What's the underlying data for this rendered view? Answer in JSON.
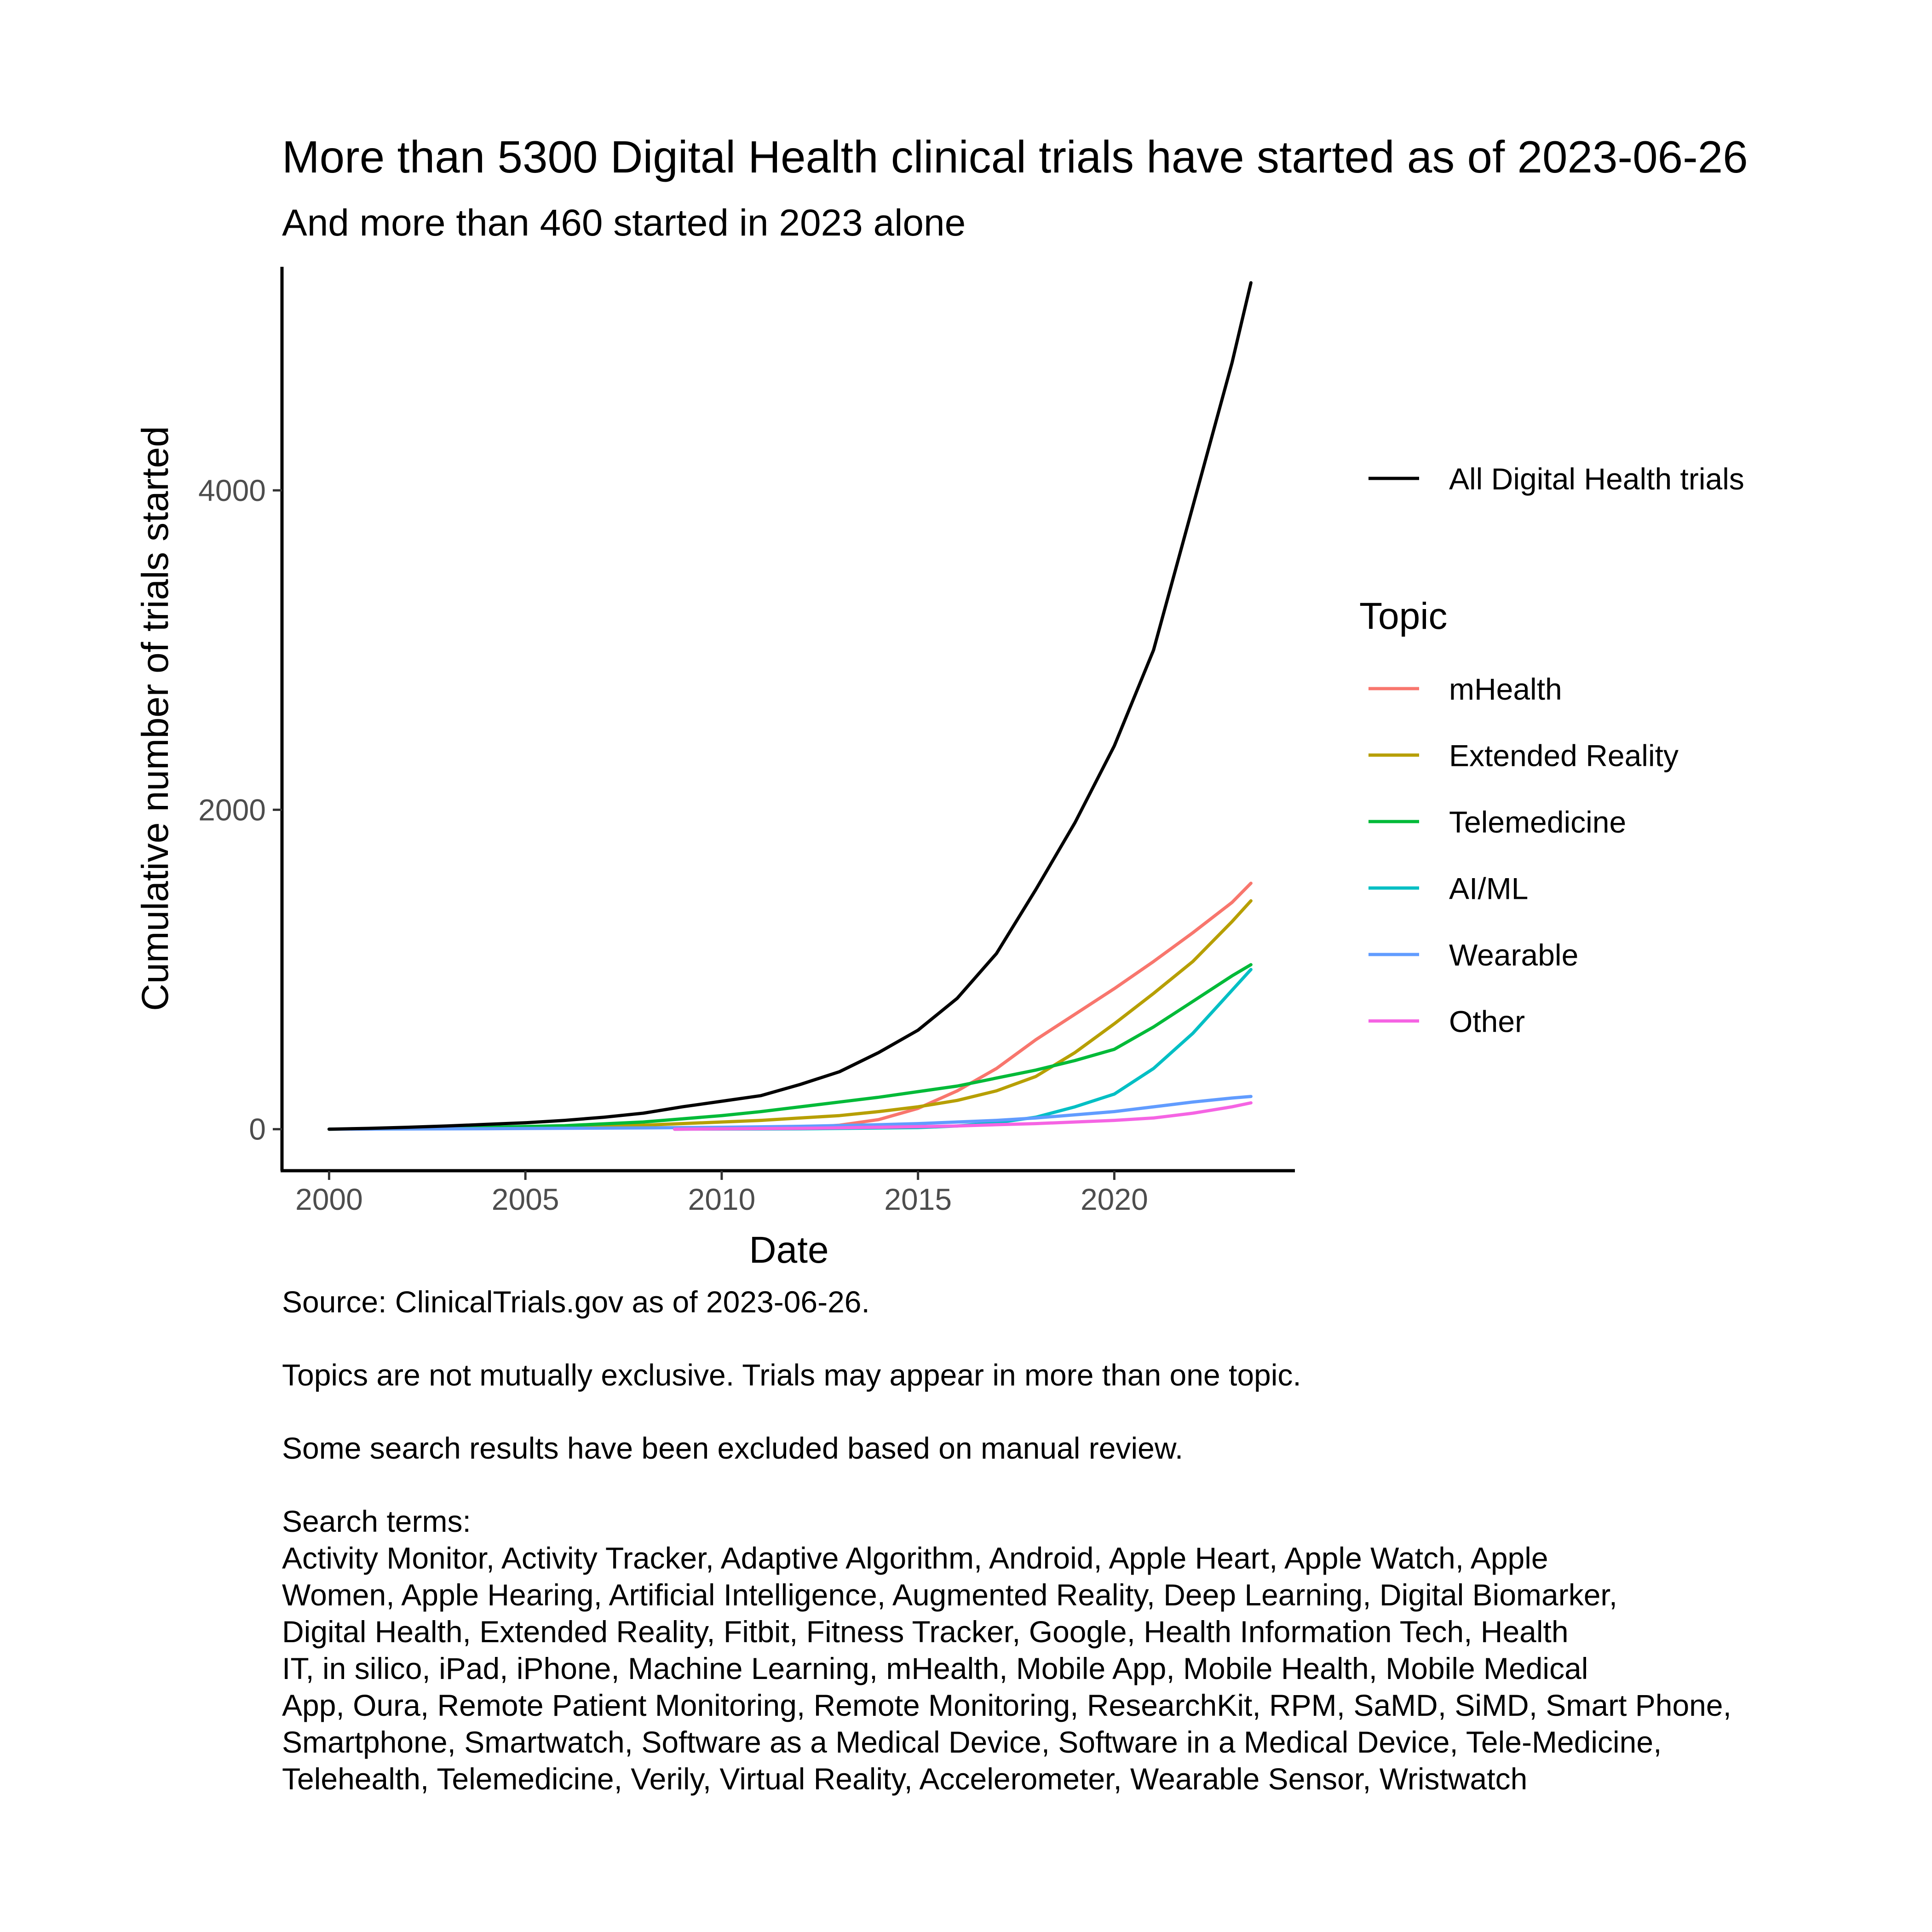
{
  "chart_data": {
    "type": "line",
    "title": "More than 5300 Digital Health clinical trials have started as of 2023-06-26",
    "subtitle": "And more than 460 started in 2023 alone",
    "xlabel": "Date",
    "ylabel": "Cumulative number of trials started",
    "xlim": [
      1998.8,
      2024.6
    ],
    "ylim": [
      -260,
      5400
    ],
    "x_ticks": [
      2000,
      2005,
      2010,
      2015,
      2020
    ],
    "x_tick_labels": [
      "2000",
      "2005",
      "2010",
      "2015",
      "2020"
    ],
    "y_ticks": [
      0,
      2000,
      4000
    ],
    "y_tick_labels": [
      "0",
      "2000",
      "4000"
    ],
    "grid": false,
    "legend_placement": "right",
    "legend_top_label": "All Digital Health trials",
    "legend_title": "Topic",
    "series": [
      {
        "name": "All Digital Health trials",
        "color": "#000000",
        "x": [
          2000,
          2001,
          2002,
          2003,
          2004,
          2005,
          2006,
          2007,
          2008,
          2009,
          2010,
          2011,
          2012,
          2013,
          2014,
          2015,
          2016,
          2017,
          2018,
          2019,
          2020,
          2021,
          2022,
          2023,
          2023.48
        ],
        "y": [
          0,
          5,
          12,
          20,
          30,
          40,
          55,
          75,
          100,
          140,
          175,
          210,
          280,
          360,
          480,
          620,
          820,
          1100,
          1500,
          1920,
          2400,
          3000,
          3900,
          4800,
          5300
        ]
      },
      {
        "name": "mHealth",
        "color": "#F8766D",
        "x": [
          2008.8,
          2010,
          2011,
          2012,
          2013,
          2014,
          2015,
          2016,
          2017,
          2018,
          2019,
          2020,
          2021,
          2022,
          2023,
          2023.48
        ],
        "y": [
          0,
          2,
          5,
          10,
          25,
          60,
          130,
          240,
          380,
          560,
          720,
          880,
          1050,
          1230,
          1420,
          1540
        ]
      },
      {
        "name": "Extended Reality",
        "color": "#B79F00",
        "x": [
          2000,
          2002,
          2004,
          2006,
          2008,
          2010,
          2011,
          2012,
          2013,
          2014,
          2015,
          2016,
          2017,
          2018,
          2019,
          2020,
          2021,
          2022,
          2023,
          2023.48
        ],
        "y": [
          0,
          3,
          8,
          14,
          25,
          45,
          55,
          70,
          85,
          110,
          140,
          180,
          240,
          330,
          480,
          660,
          850,
          1050,
          1300,
          1430
        ]
      },
      {
        "name": "Telemedicine",
        "color": "#00BA38",
        "x": [
          2000,
          2002,
          2004,
          2006,
          2008,
          2009,
          2010,
          2011,
          2012,
          2013,
          2014,
          2015,
          2016,
          2017,
          2018,
          2019,
          2020,
          2021,
          2022,
          2023,
          2023.48
        ],
        "y": [
          0,
          5,
          12,
          22,
          45,
          65,
          85,
          110,
          140,
          170,
          200,
          235,
          270,
          320,
          370,
          430,
          500,
          640,
          800,
          960,
          1030
        ]
      },
      {
        "name": "AI/ML",
        "color": "#00BFC4",
        "x": [
          2008.8,
          2012,
          2015,
          2016,
          2017,
          2018,
          2019,
          2020,
          2021,
          2022,
          2023,
          2023.48
        ],
        "y": [
          0,
          2,
          10,
          20,
          40,
          75,
          140,
          220,
          380,
          600,
          870,
          1000
        ]
      },
      {
        "name": "Wearable",
        "color": "#619CFF",
        "x": [
          2000,
          2004,
          2008,
          2010,
          2012,
          2014,
          2015,
          2016,
          2017,
          2018,
          2019,
          2020,
          2021,
          2022,
          2023,
          2023.48
        ],
        "y": [
          0,
          3,
          8,
          12,
          18,
          28,
          35,
          45,
          55,
          70,
          90,
          110,
          140,
          170,
          195,
          205
        ]
      },
      {
        "name": "Other",
        "color": "#F564E3",
        "x": [
          2008.8,
          2012,
          2014,
          2016,
          2017,
          2018,
          2019,
          2020,
          2021,
          2022,
          2023,
          2023.48
        ],
        "y": [
          0,
          5,
          12,
          20,
          28,
          35,
          45,
          55,
          70,
          100,
          140,
          165
        ]
      }
    ]
  },
  "caption": {
    "source": "Source: ClinicalTrials.gov as of 2023-06-26.",
    "note_exclusive": "Topics are not mutually exclusive. Trials may appear in more than one topic.",
    "note_review": "Some search results have been excluded based on manual review.",
    "terms_heading": "Search terms:",
    "terms_lines": [
      "Activity Monitor, Activity Tracker, Adaptive Algorithm, Android, Apple Heart, Apple Watch, Apple",
      "Women, Apple Hearing, Artificial Intelligence, Augmented Reality, Deep Learning, Digital Biomarker,",
      "Digital Health, Extended Reality, Fitbit, Fitness Tracker, Google, Health Information Tech, Health",
      "IT, in silico, iPad, iPhone, Machine Learning, mHealth, Mobile App, Mobile Health, Mobile Medical",
      "App, Oura, Remote Patient Monitoring, Remote Monitoring, ResearchKit, RPM, SaMD, SiMD, Smart Phone,",
      "Smartphone, Smartwatch, Software as a Medical Device, Software in a Medical Device, Tele-Medicine,",
      "Telehealth, Telemedicine, Verily, Virtual Reality, Accelerometer, Wearable Sensor, Wristwatch"
    ]
  }
}
